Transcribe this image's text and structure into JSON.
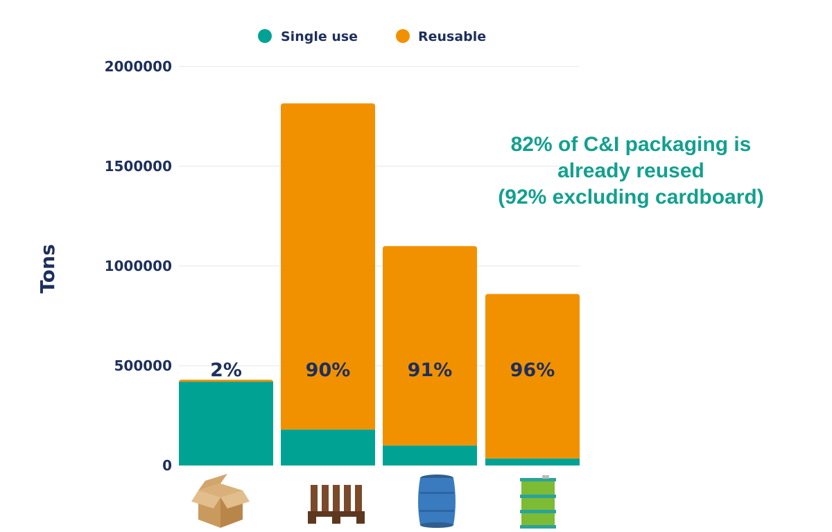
{
  "colors": {
    "single_use": "#00a393",
    "reusable": "#f29100",
    "text": "#1d2f5c",
    "annotation": "#12a08e",
    "grid": "#e6e6e6"
  },
  "annotation": {
    "line1": "82% of C&I packaging is",
    "line2": "already reused",
    "line3": "(92% excluding cardboard)"
  },
  "chart_data": {
    "type": "bar",
    "stacked": true,
    "ylabel": "Tons",
    "xlabel": "",
    "ylim": [
      0,
      2000000
    ],
    "yticks": [
      0,
      500000,
      1000000,
      1500000,
      2000000
    ],
    "grid": true,
    "legend_position": "top",
    "categories": [
      "cardboard-box-icon",
      "wooden-pallet-icon",
      "plastic-drum-icon",
      "steel-drum-icon"
    ],
    "series": [
      {
        "name": "Single use",
        "color": "#00a393",
        "values": [
          420000,
          180000,
          100000,
          35000
        ]
      },
      {
        "name": "Reusable",
        "color": "#f29100",
        "values": [
          10000,
          1635000,
          1000000,
          825000
        ]
      }
    ],
    "bar_labels": [
      "2%",
      "90%",
      "91%",
      "96%"
    ]
  }
}
